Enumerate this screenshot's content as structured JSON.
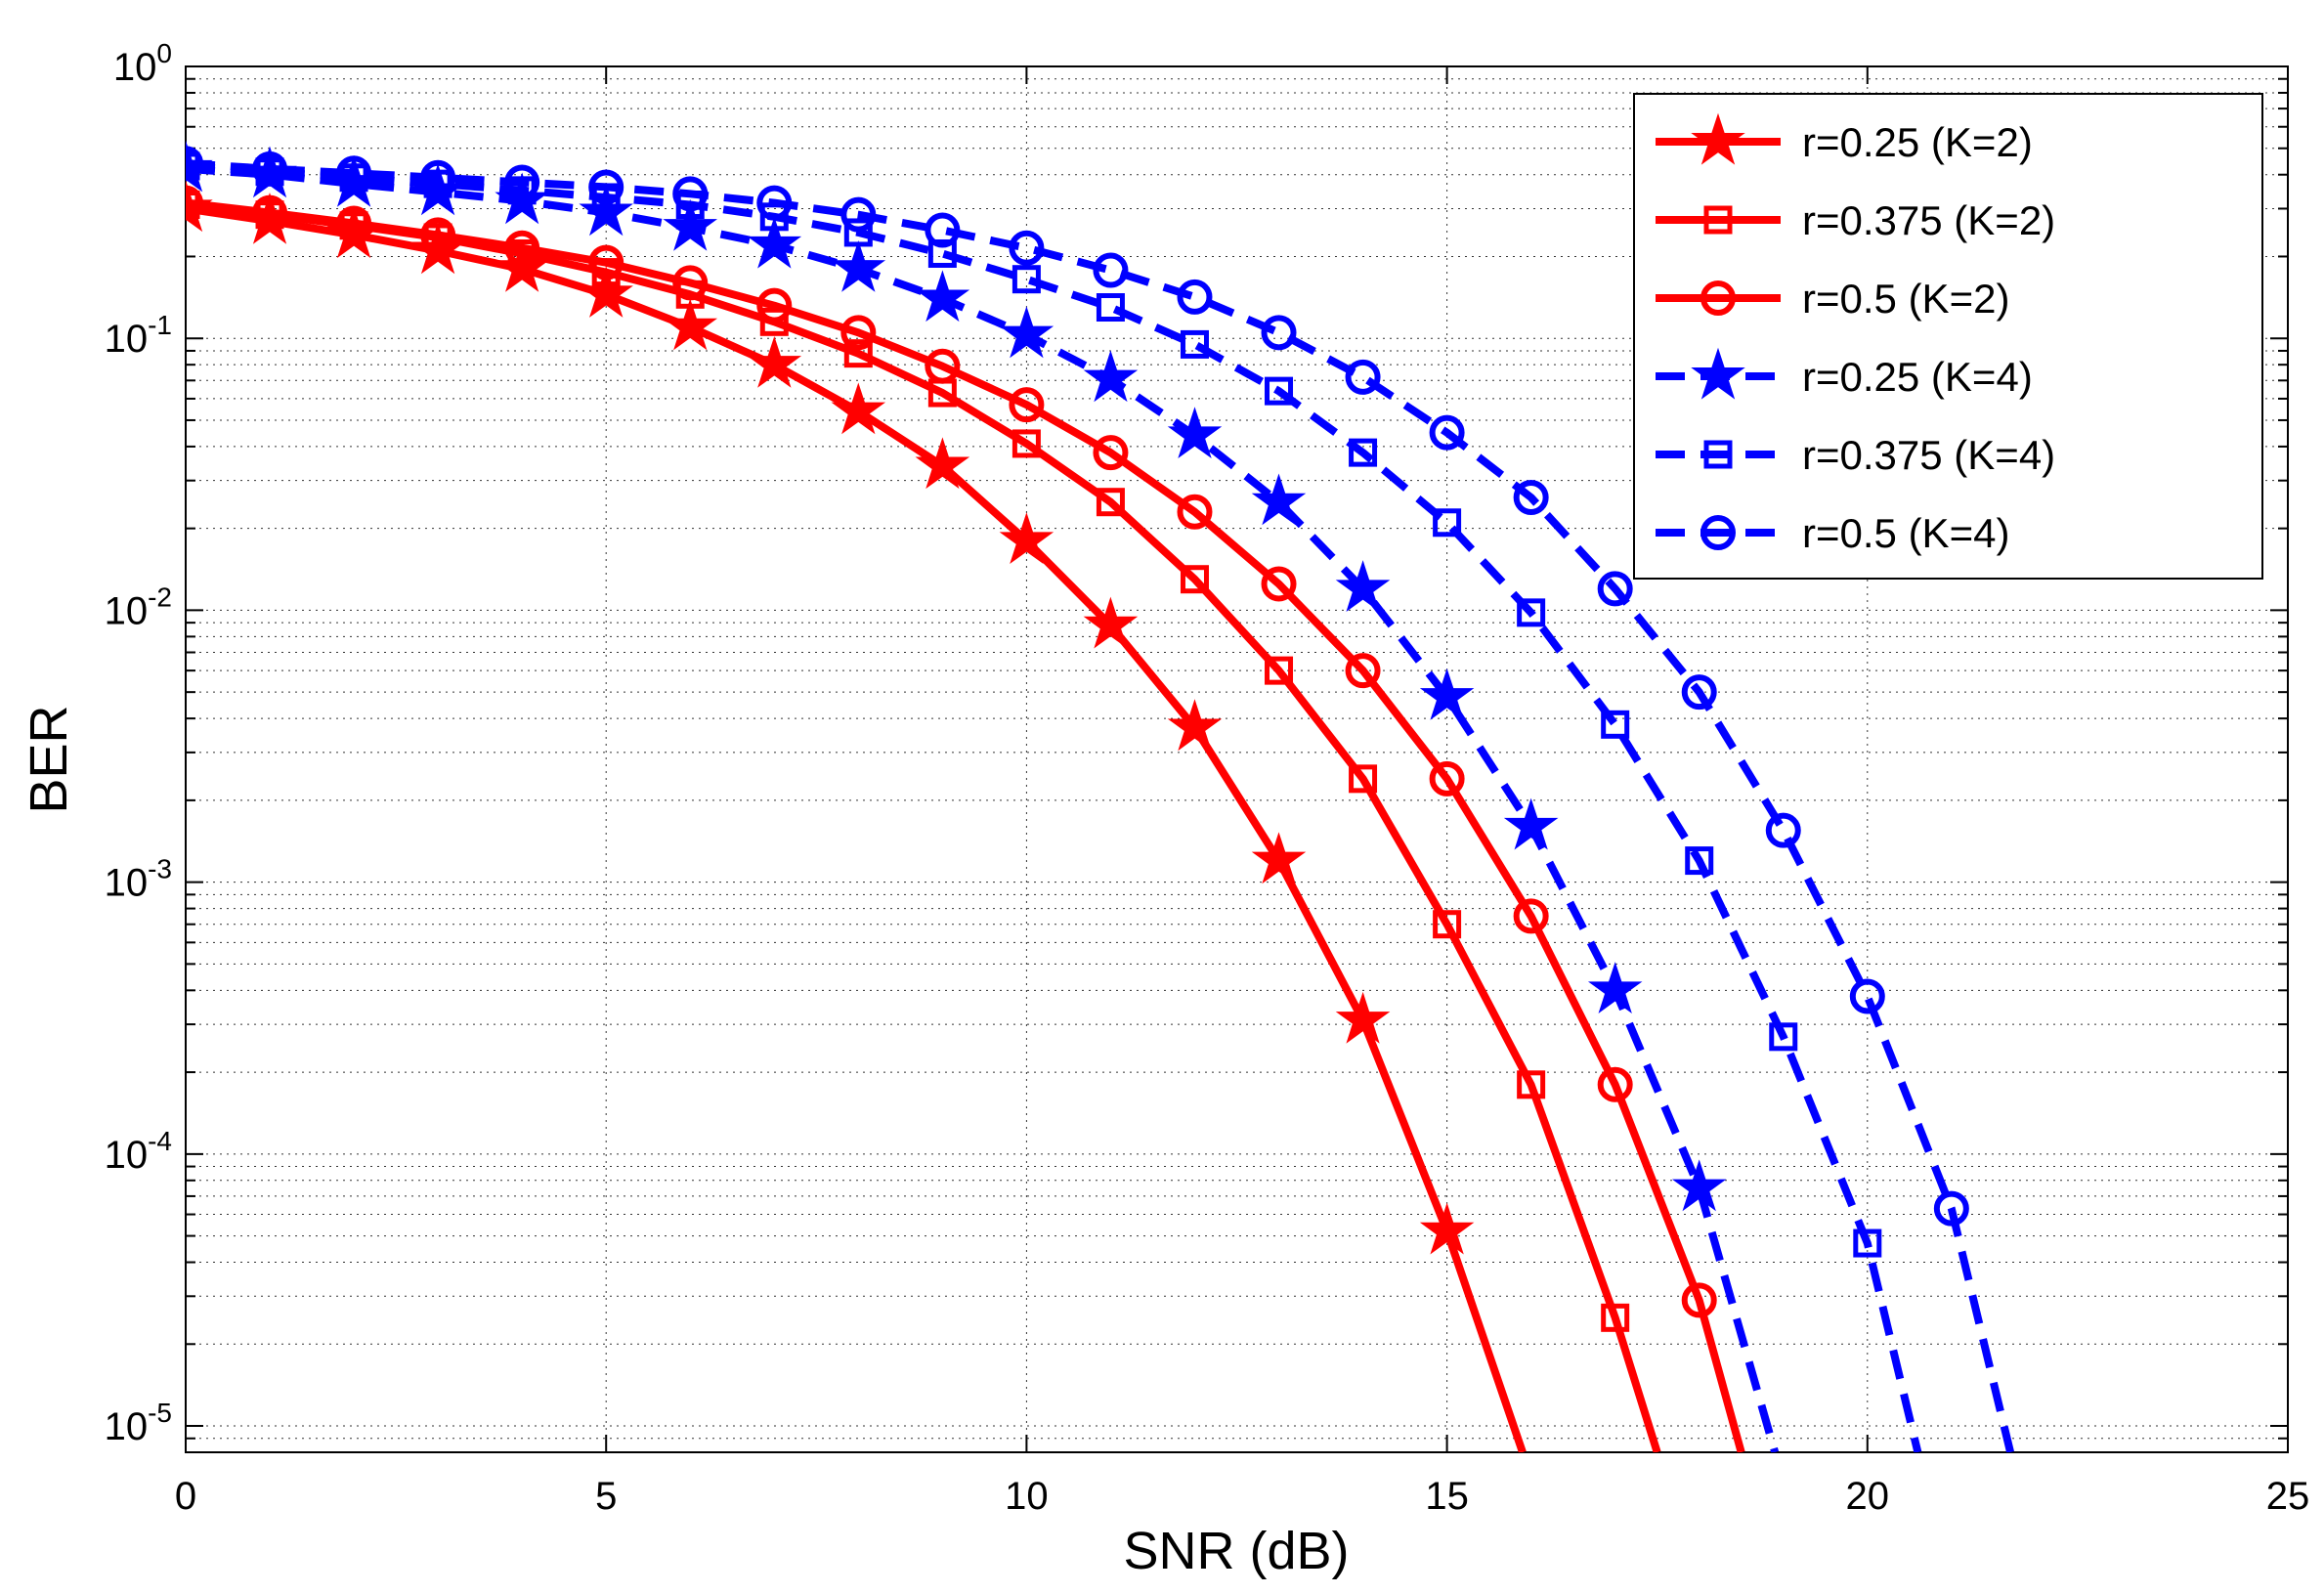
{
  "chart_data": {
    "type": "line",
    "title": "",
    "xlabel": "SNR (dB)",
    "ylabel": "BER",
    "xlim": [
      0,
      25
    ],
    "ylim": [
      8e-06,
      1
    ],
    "yscale": "log",
    "grid": true,
    "legend_position": "top-right",
    "x_ticks": [
      "0",
      "5",
      "10",
      "15",
      "20",
      "25"
    ],
    "y_ticks": [
      {
        "value": 1,
        "base": "10",
        "exp": "0"
      },
      {
        "value": 0.1,
        "base": "10",
        "exp": "-1"
      },
      {
        "value": 0.01,
        "base": "10",
        "exp": "-2"
      },
      {
        "value": 0.001,
        "base": "10",
        "exp": "-3"
      },
      {
        "value": 0.0001,
        "base": "10",
        "exp": "-4"
      },
      {
        "value": 1e-05,
        "base": "10",
        "exp": "-5"
      }
    ],
    "series": [
      {
        "name": "r=0.25 (K=2)",
        "color": "#ff0000",
        "dash": "solid",
        "marker": "star",
        "x": [
          0,
          1,
          2,
          3,
          4,
          5,
          6,
          7,
          8,
          9,
          10,
          11,
          12,
          13,
          14,
          15
        ],
        "y": [
          0.3,
          0.27,
          0.24,
          0.21,
          0.18,
          0.145,
          0.11,
          0.08,
          0.054,
          0.034,
          0.018,
          0.0088,
          0.0037,
          0.0012,
          0.00031,
          5.2e-05
        ],
        "line_end": [
          15.9,
          8e-06
        ]
      },
      {
        "name": "r=0.375 (K=2)",
        "color": "#ff0000",
        "dash": "solid",
        "marker": "square",
        "x": [
          0,
          1,
          2,
          3,
          4,
          5,
          6,
          7,
          8,
          9,
          10,
          11,
          12,
          13,
          14,
          15,
          16,
          17
        ],
        "y": [
          0.31,
          0.285,
          0.26,
          0.235,
          0.205,
          0.175,
          0.145,
          0.115,
          0.088,
          0.063,
          0.041,
          0.025,
          0.013,
          0.006,
          0.0024,
          0.0007,
          0.00018,
          2.5e-05
        ],
        "line_end": [
          17.5,
          8e-06
        ]
      },
      {
        "name": "r=0.5 (K=2)",
        "color": "#ff0000",
        "dash": "solid",
        "marker": "circle",
        "x": [
          0,
          1,
          2,
          3,
          4,
          5,
          6,
          7,
          8,
          9,
          10,
          11,
          12,
          13,
          14,
          15,
          16,
          17,
          18
        ],
        "y": [
          0.315,
          0.29,
          0.265,
          0.24,
          0.215,
          0.19,
          0.16,
          0.132,
          0.105,
          0.079,
          0.057,
          0.038,
          0.023,
          0.0125,
          0.006,
          0.0024,
          0.00075,
          0.00018,
          2.9e-05
        ],
        "line_end": [
          18.5,
          8e-06
        ]
      },
      {
        "name": "r=0.25 (K=4)",
        "color": "#0000ff",
        "dash": "dashed",
        "marker": "star",
        "x": [
          0,
          1,
          2,
          3,
          4,
          5,
          6,
          7,
          8,
          9,
          10,
          11,
          12,
          13,
          14,
          15,
          16,
          17,
          18
        ],
        "y": [
          0.42,
          0.4,
          0.37,
          0.345,
          0.32,
          0.29,
          0.255,
          0.22,
          0.18,
          0.14,
          0.103,
          0.071,
          0.044,
          0.025,
          0.012,
          0.0048,
          0.0016,
          0.0004,
          7.5e-05
        ],
        "line_end": [
          18.9,
          8e-06
        ]
      },
      {
        "name": "r=0.375 (K=4)",
        "color": "#0000ff",
        "dash": "dashed",
        "marker": "square",
        "x": [
          0,
          1,
          2,
          3,
          4,
          5,
          6,
          7,
          8,
          9,
          10,
          11,
          12,
          13,
          14,
          15,
          16,
          17,
          18,
          19,
          20
        ],
        "y": [
          0.43,
          0.41,
          0.39,
          0.37,
          0.35,
          0.33,
          0.31,
          0.28,
          0.245,
          0.205,
          0.165,
          0.13,
          0.095,
          0.064,
          0.038,
          0.021,
          0.0098,
          0.0038,
          0.0012,
          0.00027,
          4.7e-05
        ],
        "line_end": [
          20.6,
          8e-06
        ]
      },
      {
        "name": "r=0.5 (K=4)",
        "color": "#0000ff",
        "dash": "dashed",
        "marker": "circle",
        "x": [
          0,
          1,
          2,
          3,
          4,
          5,
          6,
          7,
          8,
          9,
          10,
          11,
          12,
          13,
          14,
          15,
          16,
          17,
          18,
          19,
          20,
          21
        ],
        "y": [
          0.44,
          0.42,
          0.405,
          0.39,
          0.375,
          0.36,
          0.34,
          0.315,
          0.285,
          0.25,
          0.215,
          0.178,
          0.142,
          0.105,
          0.072,
          0.045,
          0.026,
          0.012,
          0.005,
          0.00155,
          0.00038,
          6.3e-05
        ],
        "line_end": [
          21.7,
          8e-06
        ]
      }
    ]
  }
}
